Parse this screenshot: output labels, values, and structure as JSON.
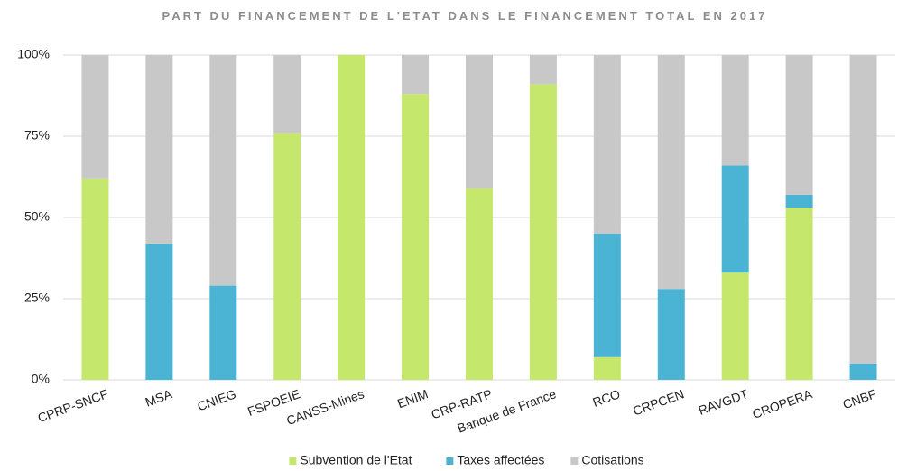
{
  "chart_data": {
    "type": "stacked_bar",
    "title": "PART DU FINANCEMENT DE L'ETAT DANS LE FINANCEMENT TOTAL EN 2017",
    "categories": [
      "CPRP-SNCF",
      "MSA",
      "CNIEG",
      "FSPOEIE",
      "CANSS-Mines",
      "ENIM",
      "CRP-RATP",
      "Banque de France",
      "RCO",
      "CRPCEN",
      "RAVGDT",
      "CROPERA",
      "CNBF"
    ],
    "series": [
      {
        "name": "Subvention de l'Etat",
        "color": "#c5e86c",
        "values": [
          62,
          0,
          0,
          76,
          100,
          88,
          59,
          91,
          7,
          0,
          33,
          53,
          0
        ]
      },
      {
        "name": "Taxes affectées",
        "color": "#4bb3d4",
        "values": [
          0,
          42,
          29,
          0,
          0,
          0,
          0,
          0,
          38,
          28,
          33,
          4,
          5
        ]
      },
      {
        "name": "Cotisations",
        "color": "#c8c8c8",
        "values": [
          38,
          58,
          71,
          24,
          0,
          12,
          41,
          9,
          55,
          72,
          34,
          43,
          95
        ]
      }
    ],
    "ylim": [
      0,
      100
    ],
    "yticks": [
      {
        "value": 0,
        "label": "0%"
      },
      {
        "value": 25,
        "label": "25%"
      },
      {
        "value": 50,
        "label": "50%"
      },
      {
        "value": 75,
        "label": "75%"
      },
      {
        "value": 100,
        "label": "100%"
      }
    ],
    "grid": true,
    "legend": "bottom"
  }
}
